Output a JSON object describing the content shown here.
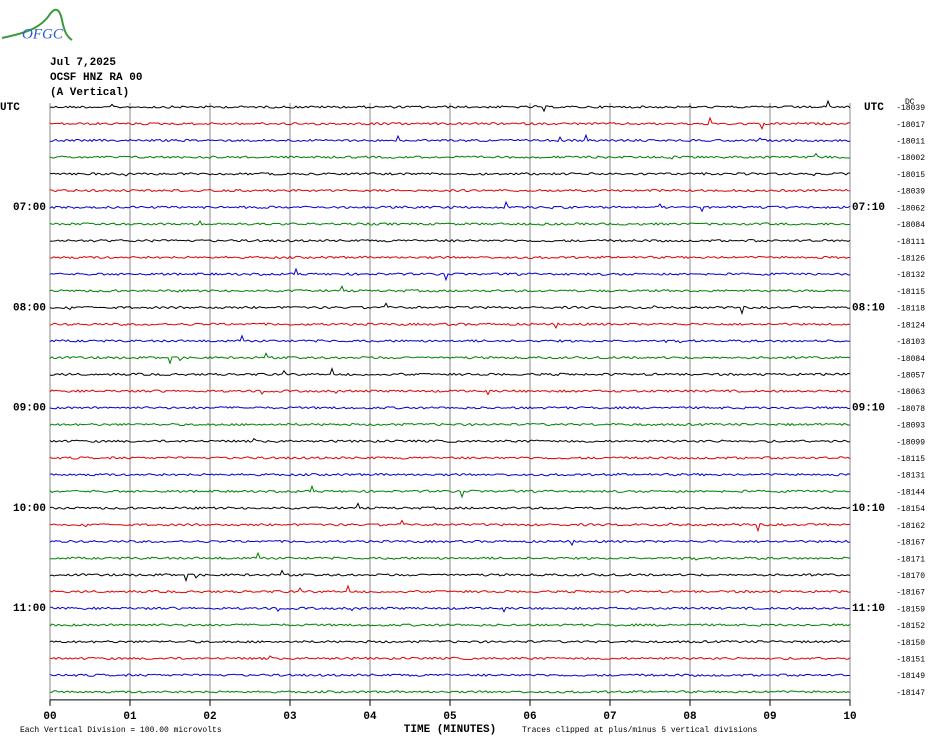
{
  "logo": "OFGC",
  "header": {
    "date": "Jul 7,2025",
    "station": "OCSF HNZ RA 00",
    "component": "(A Vertical)"
  },
  "chart_data": {
    "type": "helicorder",
    "left_axis_label": "UTC",
    "right_axis_label": "UTC",
    "dc_label": "DC",
    "trace_colors": [
      "#000000",
      "#e00000",
      "#0000d0",
      "#008000"
    ],
    "left_labels": [
      null,
      null,
      null,
      null,
      null,
      null,
      "07:00",
      null,
      null,
      null,
      null,
      null,
      "08:00",
      null,
      null,
      null,
      null,
      null,
      "09:00",
      null,
      null,
      null,
      null,
      null,
      "10:00",
      null,
      null,
      null,
      null,
      null,
      "11:00",
      null,
      null,
      null,
      null,
      null
    ],
    "right_labels": [
      null,
      null,
      null,
      null,
      null,
      null,
      "07:10",
      null,
      null,
      null,
      null,
      null,
      "08:10",
      null,
      null,
      null,
      null,
      null,
      "09:10",
      null,
      null,
      null,
      null,
      null,
      "10:10",
      null,
      null,
      null,
      null,
      null,
      "11:10",
      null,
      null,
      null,
      null,
      null
    ],
    "dc_offsets": [
      -18039,
      -18017,
      -18011,
      -18002,
      -18015,
      -18039,
      -18062,
      -18084,
      -18111,
      -18126,
      -18132,
      -18115,
      -18118,
      -18124,
      -18103,
      -18084,
      -18057,
      -18063,
      -18078,
      -18093,
      -18099,
      -18115,
      -18131,
      -18144,
      -18154,
      -18162,
      -18167,
      -18171,
      -18170,
      -18167,
      -18159,
      -18152,
      -18150,
      -18151,
      -18149,
      -18147
    ],
    "xlim": [
      0,
      10
    ],
    "xticks": [
      {
        "value": 0,
        "label": "00"
      },
      {
        "value": 1,
        "label": "01"
      },
      {
        "value": 2,
        "label": "02"
      },
      {
        "value": 3,
        "label": "03"
      },
      {
        "value": 4,
        "label": "04"
      },
      {
        "value": 5,
        "label": "05"
      },
      {
        "value": 6,
        "label": "06"
      },
      {
        "value": 7,
        "label": "07"
      },
      {
        "value": 8,
        "label": "08"
      },
      {
        "value": 9,
        "label": "09"
      },
      {
        "value": 10,
        "label": "10"
      }
    ],
    "xlabel": "TIME (MINUTES)",
    "grid": true,
    "scale_note": "Each Vertical Division =  100.00 microvolts",
    "clip_note": "Traces clipped at plus/minus 5 vertical divisions"
  }
}
